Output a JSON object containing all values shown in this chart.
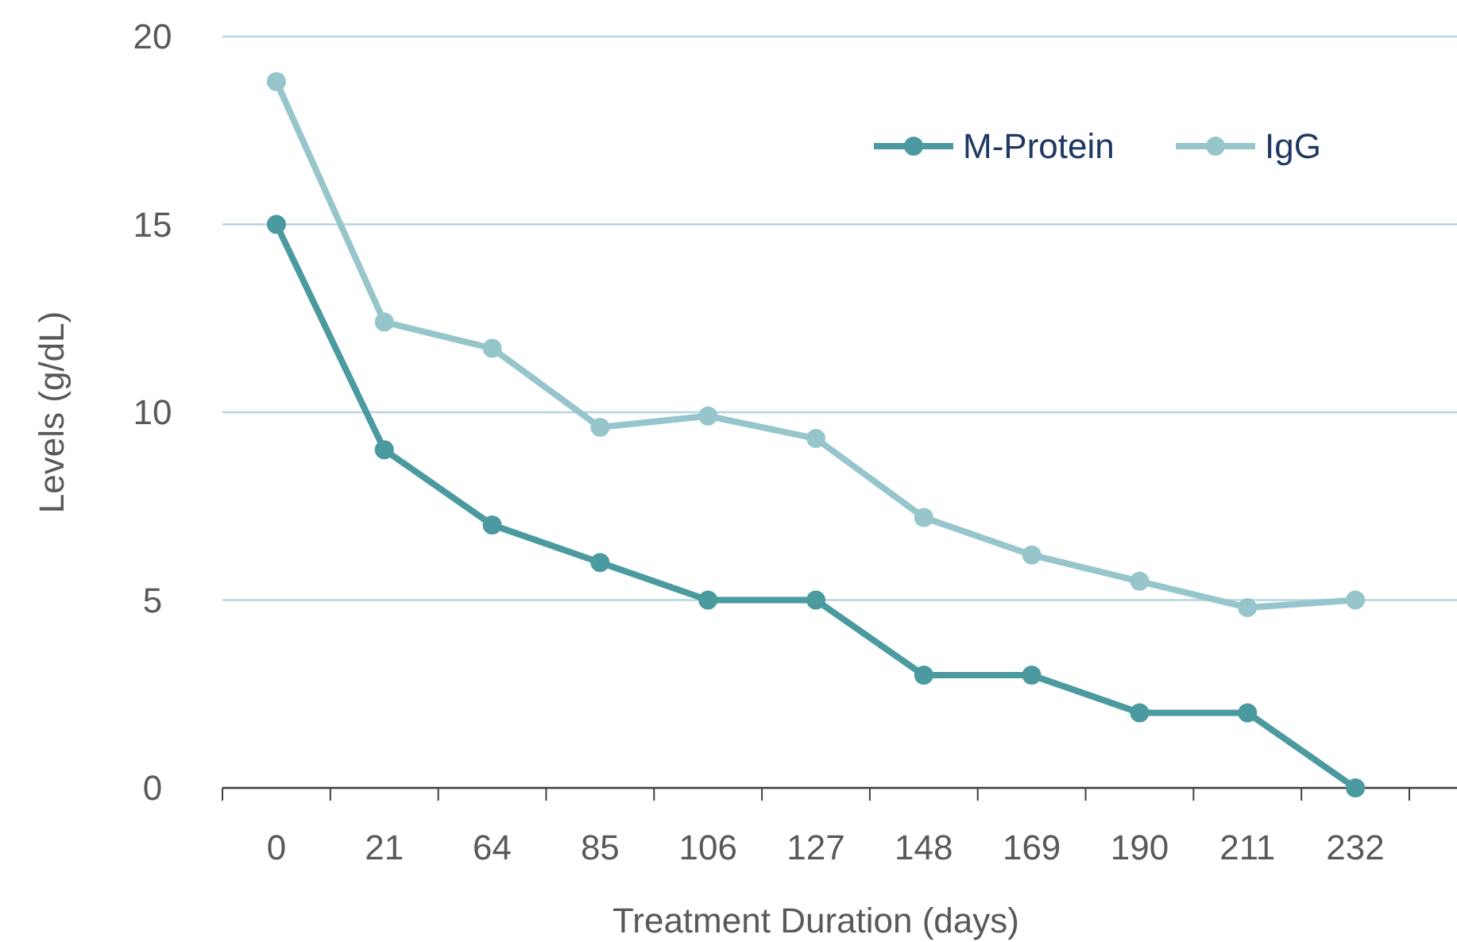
{
  "chart_data": {
    "type": "line",
    "xlabel": "Treatment Duration (days)",
    "ylabel": "Levels (g/dL)",
    "categories": [
      "0",
      "21",
      "64",
      "85",
      "106",
      "127",
      "148",
      "169",
      "190",
      "211",
      "232"
    ],
    "series": [
      {
        "name": "M-Protein",
        "color": "#4a9aa0",
        "values": [
          15,
          9,
          7,
          6,
          5,
          5,
          3,
          3,
          2,
          2,
          0
        ]
      },
      {
        "name": "IgG",
        "color": "#96c6cc",
        "values": [
          18.8,
          12.4,
          11.7,
          9.6,
          9.9,
          9.3,
          7.2,
          6.2,
          5.5,
          4.8,
          5.0
        ]
      }
    ],
    "ylim": [
      0,
      20
    ],
    "yticks": [
      0,
      5,
      10,
      15,
      20
    ],
    "grid": "y",
    "legend": "top right",
    "marker": "circle",
    "line_style": "solid"
  }
}
